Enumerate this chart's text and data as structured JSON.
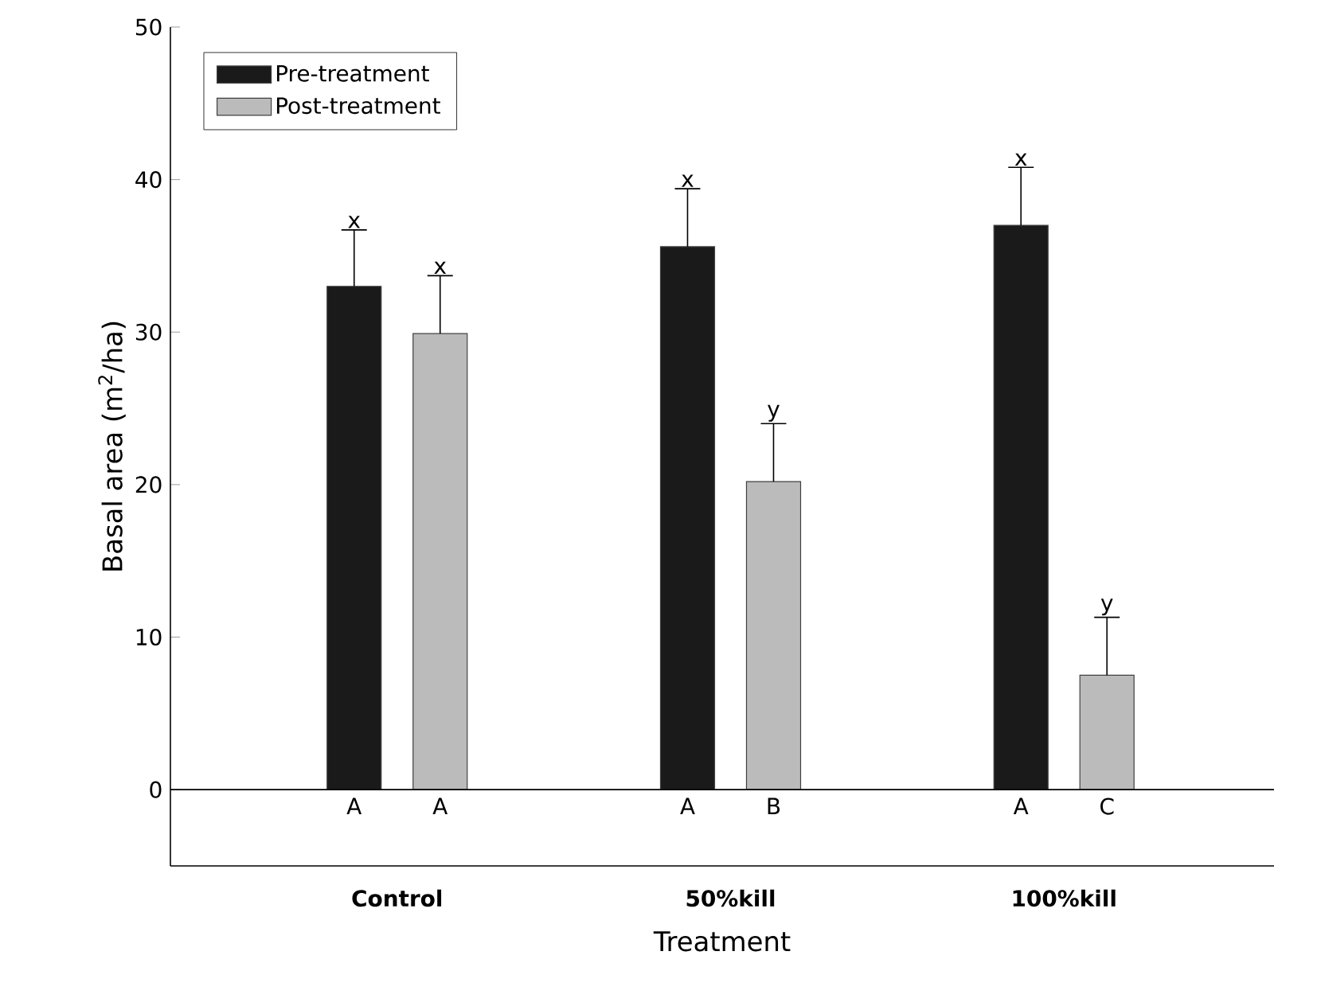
{
  "chart_data": {
    "type": "bar",
    "categories": [
      "Control",
      "50%kill",
      "100%kill"
    ],
    "xlabel": "Treatment",
    "ylabel": "Basal area (m$^{2}$/ha)",
    "series": [
      {
        "name": "Pre-treatment",
        "color": "#1a1a1a",
        "values": [
          33.0,
          35.6,
          37.0
        ],
        "errors": [
          [
            33.0,
            36.7
          ],
          [
            35.6,
            39.4
          ],
          [
            37.0,
            40.8
          ]
        ],
        "value_labels": [
          "x",
          "x",
          "x"
        ]
      },
      {
        "name": "Post-treatment",
        "color": "#bbbbbb",
        "values": [
          29.9,
          20.2,
          7.5
        ],
        "errors": [
          [
            29.9,
            33.7
          ],
          [
            20.2,
            24.0
          ],
          [
            7.5,
            11.3
          ]
        ],
        "value_labels": [
          "x",
          "y",
          "y"
        ]
      }
    ],
    "annotations": [
      "A",
      "A",
      "A",
      "B",
      "A",
      "C"
    ],
    "ref_lines": [
      {
        "axis": "y",
        "value": 0
      }
    ],
    "ylim": [
      -5,
      50
    ],
    "yticks": [
      0,
      10,
      20,
      30,
      40,
      50
    ],
    "legend": "top left",
    "grid": false
  }
}
